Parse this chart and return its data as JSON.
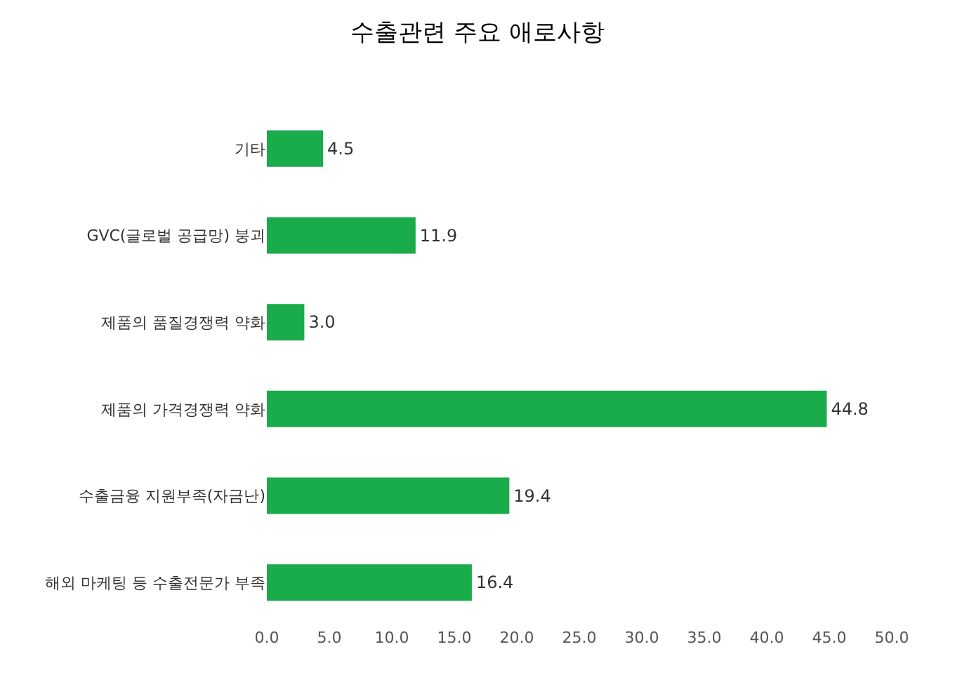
{
  "chart_data": {
    "type": "bar",
    "orientation": "horizontal",
    "title": "수출관련 주요 애로사항",
    "categories": [
      "기타",
      "GVC(글로벌 공급망) 붕괴",
      "제품의 품질경쟁력 약화",
      "제품의 가격경쟁력 약화",
      "수출금융 지원부족(자금난)",
      "해외 마케팅 등 수출전문가 부족"
    ],
    "values": [
      4.5,
      11.9,
      3.0,
      44.8,
      19.4,
      16.4
    ],
    "value_labels": [
      "4.5",
      "11.9",
      "3.0",
      "44.8",
      "19.4",
      "16.4"
    ],
    "color": "#1aab4b",
    "xlim": [
      0,
      50
    ],
    "xticks": [
      {
        "value": 0,
        "label": "0.0"
      },
      {
        "value": 5,
        "label": "5.0"
      },
      {
        "value": 10,
        "label": "10.0"
      },
      {
        "value": 15,
        "label": "15.0"
      },
      {
        "value": 20,
        "label": "20.0"
      },
      {
        "value": 25,
        "label": "25.0"
      },
      {
        "value": 30,
        "label": "30.0"
      },
      {
        "value": 35,
        "label": "35.0"
      },
      {
        "value": 40,
        "label": "40.0"
      },
      {
        "value": 45,
        "label": "45.0"
      },
      {
        "value": 50,
        "label": "50.0"
      }
    ],
    "grid": false,
    "legend": false
  }
}
